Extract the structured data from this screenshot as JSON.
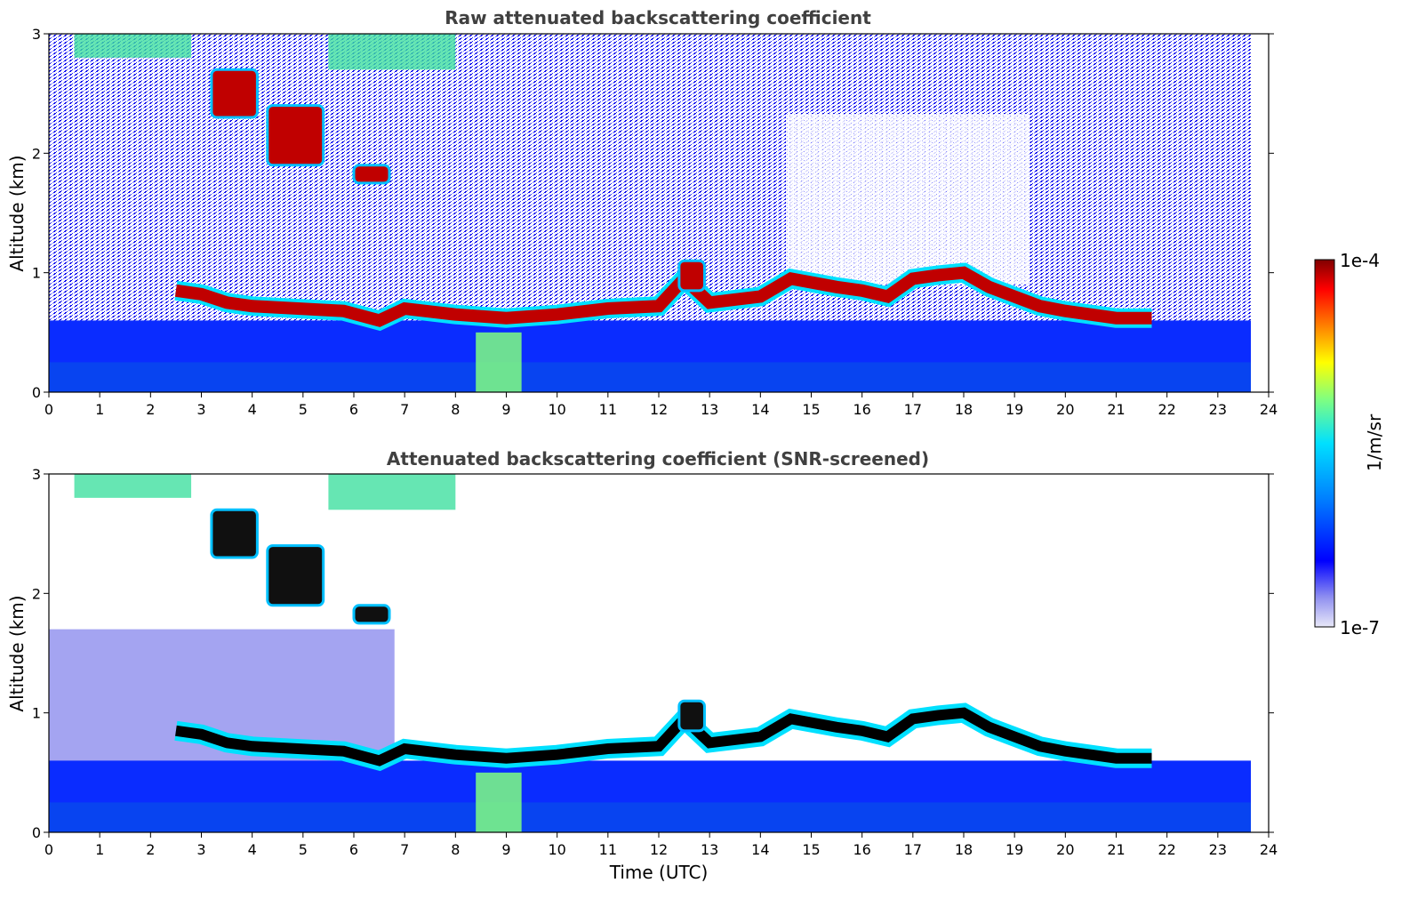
{
  "chart_data": [
    {
      "type": "heatmap",
      "title": "Raw attenuated backscattering coefficient",
      "xlabel": "",
      "ylabel": "Altitude (km)",
      "xlim": [
        0,
        24
      ],
      "ylim": [
        0,
        3
      ],
      "x_ticks": [
        "0",
        "1",
        "2",
        "3",
        "4",
        "5",
        "6",
        "7",
        "8",
        "9",
        "10",
        "11",
        "12",
        "13",
        "14",
        "15",
        "16",
        "17",
        "18",
        "19",
        "20",
        "21",
        "22",
        "23",
        "24"
      ],
      "y_ticks": [
        "0",
        "1",
        "2",
        "3"
      ],
      "data_extent_hours": 23.65,
      "boundary_layer_top_km": [
        {
          "t": 2.5,
          "z": 0.85
        },
        {
          "t": 3.0,
          "z": 0.82
        },
        {
          "t": 3.5,
          "z": 0.75
        },
        {
          "t": 4.0,
          "z": 0.72
        },
        {
          "t": 5.8,
          "z": 0.68
        },
        {
          "t": 6.5,
          "z": 0.6
        },
        {
          "t": 7.0,
          "z": 0.7
        },
        {
          "t": 8.0,
          "z": 0.65
        },
        {
          "t": 9.0,
          "z": 0.62
        },
        {
          "t": 10.0,
          "z": 0.65
        },
        {
          "t": 11.0,
          "z": 0.7
        },
        {
          "t": 12.0,
          "z": 0.72
        },
        {
          "t": 12.5,
          "z": 0.95
        },
        {
          "t": 13.0,
          "z": 0.75
        },
        {
          "t": 14.0,
          "z": 0.8
        },
        {
          "t": 14.6,
          "z": 0.95
        },
        {
          "t": 15.5,
          "z": 0.88
        },
        {
          "t": 16.0,
          "z": 0.85
        },
        {
          "t": 16.5,
          "z": 0.8
        },
        {
          "t": 17.0,
          "z": 0.95
        },
        {
          "t": 17.5,
          "z": 0.98
        },
        {
          "t": 18.0,
          "z": 1.0
        },
        {
          "t": 18.5,
          "z": 0.88
        },
        {
          "t": 19.5,
          "z": 0.72
        },
        {
          "t": 20.0,
          "z": 0.68
        },
        {
          "t": 21.0,
          "z": 0.62
        },
        {
          "t": 21.7,
          "z": 0.62
        }
      ],
      "cloud_patches": [
        {
          "t0": 3.2,
          "t1": 4.1,
          "z0": 2.3,
          "z1": 2.7
        },
        {
          "t0": 4.3,
          "t1": 5.4,
          "z0": 1.9,
          "z1": 2.4
        },
        {
          "t0": 6.0,
          "t1": 6.7,
          "z0": 1.75,
          "z1": 1.9
        },
        {
          "t0": 12.4,
          "t1": 12.9,
          "z0": 0.85,
          "z1": 1.1
        }
      ],
      "high_aerosol_top": [
        {
          "t0": 0.5,
          "t1": 2.8,
          "z0": 2.8,
          "z1": 3.0
        },
        {
          "t0": 5.5,
          "t1": 8.0,
          "z0": 2.7,
          "z1": 3.0
        }
      ]
    },
    {
      "type": "heatmap",
      "title": "Attenuated backscattering coefficient (SNR-screened)",
      "xlabel": "Time (UTC)",
      "ylabel": "Altitude (km)",
      "xlim": [
        0,
        24
      ],
      "ylim": [
        0,
        3
      ],
      "x_ticks": [
        "0",
        "1",
        "2",
        "3",
        "4",
        "5",
        "6",
        "7",
        "8",
        "9",
        "10",
        "11",
        "12",
        "13",
        "14",
        "15",
        "16",
        "17",
        "18",
        "19",
        "20",
        "21",
        "22",
        "23",
        "24"
      ],
      "y_ticks": [
        "0",
        "1",
        "2",
        "3"
      ],
      "data_extent_hours": 23.65
    }
  ],
  "colorbar": {
    "label": "1/m/sr",
    "max_label": "1e-4",
    "min_label": "1e-7",
    "scale": "log",
    "colormap": [
      "#e8e8f8",
      "#0000ff",
      "#0080ff",
      "#00e0ff",
      "#80ff80",
      "#ffff00",
      "#ff8000",
      "#ff0000",
      "#800000"
    ]
  }
}
